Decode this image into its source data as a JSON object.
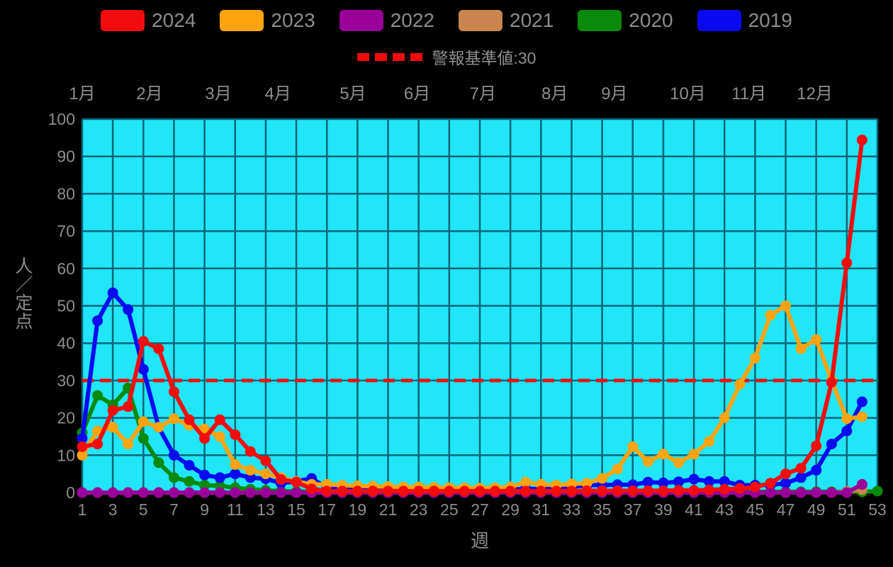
{
  "page": {
    "background": "#000000",
    "text_color": "#8d8d8d"
  },
  "alert": {
    "label": "警報基準値:30",
    "value": 30,
    "color": "#f20d0d"
  },
  "chart_data": {
    "type": "line",
    "x_label": "週",
    "y_label": "人／定点",
    "x_range": [
      1,
      53
    ],
    "y_range": [
      0,
      100
    ],
    "grid": true,
    "legend_position": "top",
    "plot_bg": "#21e5f8",
    "grid_color": "#0b6478",
    "alert_threshold": 30,
    "x_ticks": [
      1,
      3,
      5,
      7,
      9,
      11,
      13,
      15,
      17,
      19,
      21,
      23,
      25,
      27,
      29,
      31,
      33,
      35,
      37,
      39,
      41,
      43,
      45,
      47,
      49,
      51,
      53
    ],
    "y_ticks": [
      0,
      10,
      20,
      30,
      40,
      50,
      60,
      70,
      80,
      90,
      100
    ],
    "months": [
      {
        "label": "1月",
        "week": 1
      },
      {
        "label": "2月",
        "week": 5.4
      },
      {
        "label": "3月",
        "week": 9.9
      },
      {
        "label": "4月",
        "week": 13.8
      },
      {
        "label": "5月",
        "week": 18.7
      },
      {
        "label": "6月",
        "week": 22.9
      },
      {
        "label": "7月",
        "week": 27.2
      },
      {
        "label": "8月",
        "week": 31.9
      },
      {
        "label": "9月",
        "week": 35.8
      },
      {
        "label": "10月",
        "week": 40.6
      },
      {
        "label": "11月",
        "week": 44.6
      },
      {
        "label": "12月",
        "week": 48.9
      }
    ],
    "draw_order": [
      "2020",
      "2019",
      "2021",
      "2022",
      "2023",
      "2024"
    ],
    "series": [
      {
        "name": "2024",
        "color": "#f20d0d",
        "start_week": 1,
        "values": [
          12.3,
          13,
          22,
          23,
          40.5,
          38.5,
          27,
          19.5,
          14.5,
          19.5,
          15.5,
          11,
          8.5,
          3.5,
          2.8,
          1,
          0.4,
          0.4,
          0.4,
          0.4,
          0.4,
          0.4,
          0.4,
          0.4,
          0.4,
          0.4,
          0.4,
          0.4,
          0.4,
          0.4,
          0.4,
          0.4,
          0.4,
          0.5,
          0.5,
          0.5,
          0.5,
          0.5,
          0.5,
          0.6,
          0.6,
          0.7,
          0.9,
          1.1,
          1.5,
          2.5,
          5,
          6.5,
          12.5,
          29.5,
          61.5,
          94.4
        ]
      },
      {
        "name": "2023",
        "color": "#ffa30f",
        "start_week": 1,
        "values": [
          10,
          16.5,
          17.5,
          13,
          19,
          17.5,
          19.8,
          18,
          17,
          15,
          7.5,
          6,
          5,
          4,
          3,
          2.2,
          2.2,
          2,
          1.8,
          1.7,
          1.6,
          1.5,
          1.5,
          1.4,
          1.3,
          1.3,
          1.2,
          1.3,
          1.5,
          2.8,
          2.2,
          2,
          2.3,
          2.5,
          3.8,
          6.3,
          12.3,
          8.3,
          10.3,
          8,
          10.3,
          13.7,
          20,
          29,
          36,
          47.5,
          50,
          38.5,
          41,
          30,
          19.8,
          20.3
        ]
      },
      {
        "name": "2022",
        "color": "#990099",
        "start_week": 1,
        "values": [
          0,
          0,
          0,
          0,
          0,
          0,
          0,
          0,
          0,
          0,
          0,
          0,
          0,
          0,
          0,
          0,
          0,
          0,
          0,
          0,
          0,
          0,
          0,
          0,
          0,
          0,
          0,
          0,
          0,
          0,
          0,
          0,
          0,
          0,
          0,
          0,
          0,
          0,
          0,
          0,
          0,
          0,
          0,
          0,
          0,
          0,
          0,
          0,
          0,
          0,
          0,
          2.2
        ]
      },
      {
        "name": "2021",
        "color": "#c8854e",
        "start_week": 1,
        "values": [
          0,
          0,
          0,
          0,
          0,
          0,
          0,
          0,
          0,
          0,
          0,
          0,
          0,
          0,
          0,
          0,
          0,
          0,
          0,
          0,
          0,
          0,
          0,
          0,
          0,
          0,
          0,
          0,
          0,
          0,
          0,
          0,
          0,
          0,
          0,
          0,
          0,
          0,
          0,
          0,
          0,
          0,
          0,
          0,
          0,
          0,
          0,
          0,
          0,
          0,
          0.3,
          0.8
        ]
      },
      {
        "name": "2020",
        "color": "#0a8a0a",
        "start_week": 1,
        "values": [
          16,
          26,
          23.5,
          28,
          14.5,
          8,
          4,
          3,
          2,
          1.8,
          1.3,
          0.9,
          0.6,
          0.4,
          0.3,
          0.2,
          0.2,
          0.2,
          0.2,
          0.2,
          0.2,
          0.2,
          0.2,
          0.2,
          0.2,
          0.2,
          0.2,
          0.2,
          0.2,
          0.2,
          0.2,
          0.2,
          0.2,
          0.2,
          0.2,
          0.2,
          0.2,
          0.2,
          0.2,
          0.2,
          0.2,
          0.2,
          0.2,
          0.2,
          0.2,
          0.2,
          0.2,
          0.2,
          0.2,
          0.2,
          0.2,
          0.2,
          0.4
        ]
      },
      {
        "name": "2019",
        "color": "#0a0af0",
        "start_week": 1,
        "values": [
          14.5,
          46,
          53.5,
          49,
          33,
          17.5,
          10,
          7.3,
          4.7,
          4,
          5,
          4,
          3.7,
          2.5,
          3,
          3.8,
          1.3,
          1.2,
          0.8,
          0.6,
          0.5,
          0.5,
          0.5,
          0.5,
          0.5,
          0.6,
          0.7,
          0.8,
          0.8,
          1,
          1,
          1.2,
          1.5,
          2,
          2,
          2.1,
          2.1,
          2.8,
          2.6,
          2.9,
          3.6,
          3,
          3,
          2,
          2,
          2,
          2.5,
          4,
          6,
          13,
          16.5,
          24.3
        ]
      }
    ]
  }
}
